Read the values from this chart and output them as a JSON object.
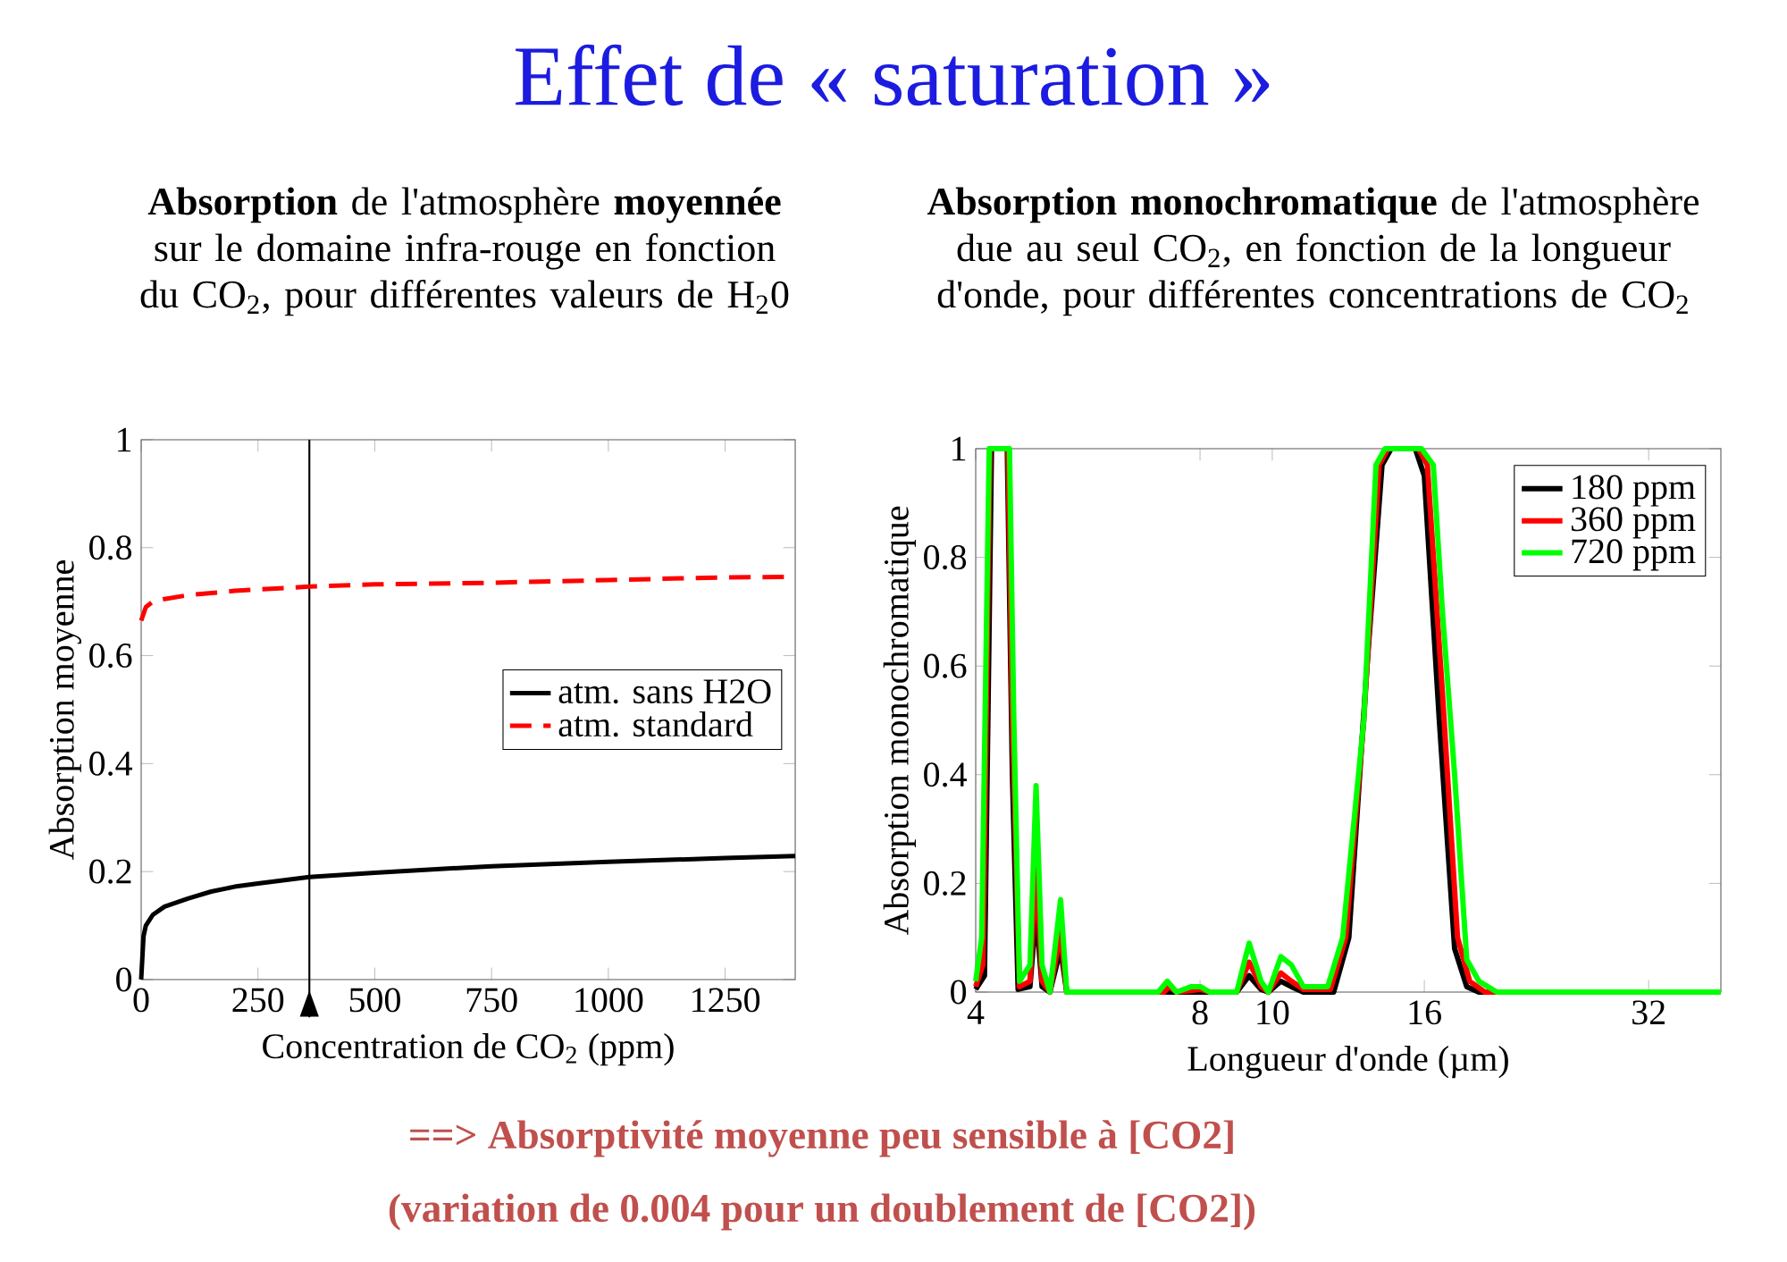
{
  "chart_data": [
    {
      "type": "line",
      "title": "Effet de « saturation »",
      "subtitle": "**Absorption** de l'atmosphère **moyennée** sur le domaine infra-rouge en fonction du CO$_{2}$, pour différentes valeurs de H$_{2}$0",
      "xlabel": "Concentration de CO$_{2}$ (ppm)",
      "ylabel": "Absorption moyenne",
      "xlim": [
        0,
        1400
      ],
      "ylim": [
        0,
        1
      ],
      "xticks": [
        0,
        250,
        500,
        750,
        1000,
        1250
      ],
      "yticks": [
        0,
        0.2,
        0.4,
        0.6,
        0.8,
        1
      ],
      "legend": "right",
      "ref_lines": [
        {
          "axis": "x",
          "value": 360,
          "color": "#000000"
        }
      ],
      "annotations": [
        "==> Absorptivité moyenne peu sensible à [CO2]",
        "(variation de 0.004 pour un doublement de [CO2])"
      ],
      "series": [
        {
          "name": "atm. sans H2O",
          "color": "#000000",
          "x": [
            0,
            5,
            10,
            25,
            50,
            100,
            150,
            200,
            250,
            360,
            500,
            750,
            1000,
            1250,
            1400
          ],
          "values": [
            0,
            0.08,
            0.1,
            0.12,
            0.135,
            0.15,
            0.163,
            0.172,
            0.178,
            0.19,
            0.198,
            0.21,
            0.218,
            0.225,
            0.229
          ]
        },
        {
          "name": "atm. standard",
          "color": "#ff0000",
          "line_style": "dashed",
          "x": [
            0,
            10,
            25,
            50,
            100,
            200,
            360,
            500,
            750,
            1000,
            1250,
            1400
          ],
          "values": [
            0.665,
            0.69,
            0.7,
            0.705,
            0.712,
            0.72,
            0.728,
            0.732,
            0.735,
            0.74,
            0.745,
            0.746
          ]
        }
      ]
    },
    {
      "type": "line",
      "subtitle": "**Absorption monochromatique** de l'atmosphère due au seul CO$_{2}$, en fonction de la longueur d'onde, pour différentes concentrations de CO$_{2}$",
      "xlabel": "Longueur d'onde (µm)",
      "ylabel": "Absorption monochromatique",
      "log": "x",
      "xlim": [
        4,
        40
      ],
      "ylim": [
        0,
        1
      ],
      "xticks": [
        4,
        8,
        10,
        16,
        32
      ],
      "yticks": [
        0,
        0.2,
        0.4,
        0.6,
        0.8,
        1
      ],
      "legend": "top right",
      "series": [
        {
          "name": "180 ppm",
          "color": "#000000",
          "x": [
            4.0,
            4.11,
            4.2,
            4.41,
            4.48,
            4.56,
            4.73,
            4.82,
            4.91,
            5.03,
            5.2,
            5.3,
            8.96,
            9.31,
            9.66,
            9.88,
            10.27,
            10.61,
            11.01,
            12.09,
            12.67,
            13.4,
            14.04,
            14.44,
            15.56,
            16.0,
            16.76,
            17.57,
            18.24,
            18.94,
            40
          ],
          "values": [
            0.005,
            0.03,
            1,
            1,
            0.4,
            0.005,
            0.01,
            0.15,
            0.01,
            0,
            0.08,
            0,
            0,
            0.03,
            0.005,
            0,
            0.02,
            0.01,
            0,
            0,
            0.1,
            0.6,
            0.97,
            1,
            1,
            0.95,
            0.5,
            0.08,
            0.01,
            0,
            0
          ]
        },
        {
          "name": "360 ppm",
          "color": "#ff0000",
          "x": [
            4.0,
            4.09,
            4.18,
            4.42,
            4.48,
            4.58,
            4.73,
            4.82,
            4.91,
            5.03,
            5.2,
            5.3,
            7.16,
            7.27,
            7.44,
            8.01,
            8.24,
            8.96,
            9.31,
            9.66,
            9.88,
            10.27,
            10.61,
            11.01,
            11.97,
            12.55,
            13.27,
            13.91,
            14.3,
            15.71,
            16.15,
            16.92,
            17.73,
            18.41,
            19.29,
            40
          ],
          "values": [
            0.01,
            0.05,
            1,
            1,
            0.5,
            0.01,
            0.02,
            0.23,
            0.02,
            0,
            0.11,
            0,
            0,
            0.01,
            0,
            0.005,
            0,
            0,
            0.055,
            0.01,
            0,
            0.035,
            0.02,
            0.005,
            0.005,
            0.1,
            0.5,
            0.97,
            1,
            1,
            0.97,
            0.55,
            0.1,
            0.02,
            0,
            0
          ]
        },
        {
          "name": "720 ppm",
          "color": "#00ff00",
          "x": [
            4.0,
            4.075,
            4.17,
            4.44,
            4.5,
            4.58,
            4.73,
            4.82,
            4.91,
            5.03,
            5.2,
            5.3,
            7.03,
            7.23,
            7.44,
            7.79,
            8.01,
            8.24,
            8.96,
            9.31,
            9.66,
            9.88,
            10.27,
            10.61,
            11.01,
            11.87,
            12.43,
            13.27,
            13.78,
            14.17,
            15.86,
            16.45,
            16.92,
            17.57,
            18.24,
            18.94,
            20.02,
            40
          ],
          "values": [
            0.02,
            0.1,
            1,
            1,
            0.5,
            0.02,
            0.05,
            0.38,
            0.05,
            0,
            0.17,
            0,
            0,
            0.02,
            0,
            0.01,
            0.01,
            0,
            0,
            0.09,
            0.02,
            0,
            0.065,
            0.05,
            0.01,
            0.01,
            0.1,
            0.5,
            0.97,
            1,
            1,
            0.97,
            0.7,
            0.4,
            0.06,
            0.02,
            0,
            0
          ]
        }
      ]
    }
  ]
}
